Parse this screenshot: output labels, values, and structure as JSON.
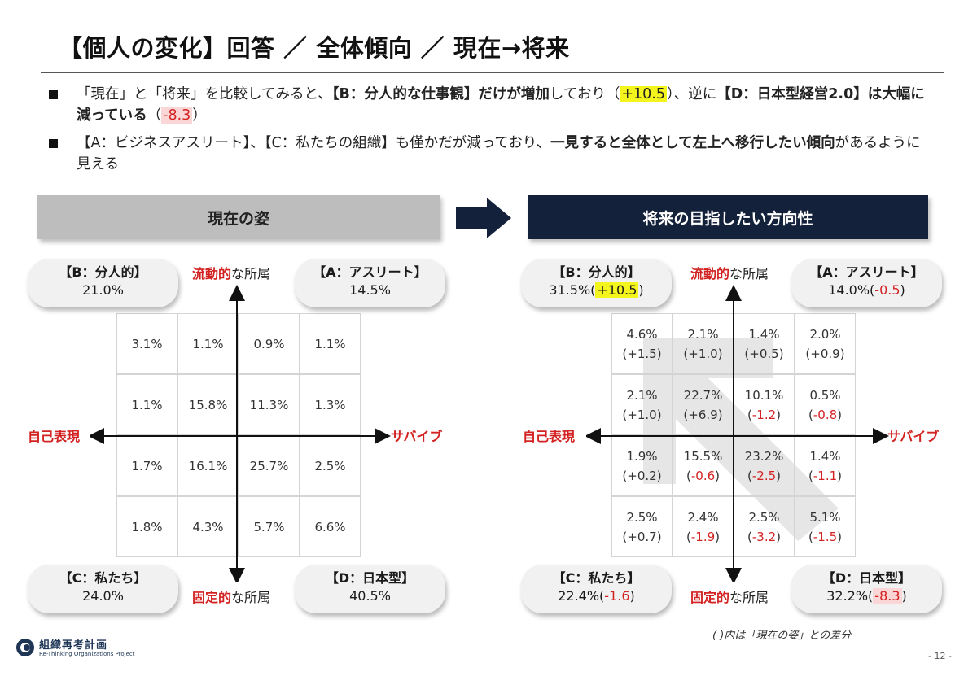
{
  "title": "【個人の変化】回答 ／ 全体傾向 ／ 現在→将来",
  "bullets": {
    "b1": {
      "p1": "「現在」と「将来」を比較してみると、",
      "p2": "【B：分人的な仕事観】だけが増加",
      "p3": "しており（",
      "p4": "+10.5",
      "p5": "）、逆に",
      "p6": "【D：日本型経営2.0】は大幅に減っている",
      "p7": "（",
      "p8": "-8.3",
      "p9": "）"
    },
    "b2": {
      "p1": "【A：ビジネスアスリート】、【C：私たちの組織】も僅かだが減っており、",
      "p2": "一見すると全体として左上へ移行したい傾向",
      "p3": "があるように見える"
    }
  },
  "left_panel": {
    "header": "現在の姿",
    "quadrants": {
      "B": {
        "title": "【B：分人的】",
        "value": "21.0%"
      },
      "A": {
        "title": "【A：アスリート】",
        "value": "14.5%"
      },
      "C": {
        "title": "【C：私たち】",
        "value": "24.0%"
      },
      "D": {
        "title": "【D：日本型】",
        "value": "40.5%"
      }
    },
    "grid": [
      [
        "3.1%",
        "1.1%",
        "0.9%",
        "1.1%"
      ],
      [
        "1.1%",
        "15.8%",
        "11.3%",
        "1.3%"
      ],
      [
        "1.7%",
        "16.1%",
        "25.7%",
        "2.5%"
      ],
      [
        "1.8%",
        "4.3%",
        "5.7%",
        "6.6%"
      ]
    ]
  },
  "right_panel": {
    "header": "将来の目指したい方向性",
    "quadrants": {
      "B": {
        "title": "【B：分人的】",
        "value": "31.5%(",
        "diff": "+10.5",
        "close": ")"
      },
      "A": {
        "title": "【A：アスリート】",
        "value": "14.0%(",
        "diff": "-0.5",
        "close": ")"
      },
      "C": {
        "title": "【C：私たち】",
        "value": "22.4%(",
        "diff": "-1.6",
        "close": ")"
      },
      "D": {
        "title": "【D：日本型】",
        "value": "32.2%(",
        "diff": "-8.3",
        "close": ")"
      }
    },
    "grid": [
      [
        {
          "v": "4.6%",
          "d": "+1.5"
        },
        {
          "v": "2.1%",
          "d": "+1.0"
        },
        {
          "v": "1.4%",
          "d": "+0.5"
        },
        {
          "v": "2.0%",
          "d": "+0.9"
        }
      ],
      [
        {
          "v": "2.1%",
          "d": "+1.0"
        },
        {
          "v": "22.7%",
          "d": "+6.9"
        },
        {
          "v": "10.1%",
          "d": "-1.2"
        },
        {
          "v": "0.5%",
          "d": "-0.8"
        }
      ],
      [
        {
          "v": "1.9%",
          "d": "+0.2"
        },
        {
          "v": "15.5%",
          "d": "-0.6"
        },
        {
          "v": "23.2%",
          "d": "-2.5"
        },
        {
          "v": "1.4%",
          "d": "-1.1"
        }
      ],
      [
        {
          "v": "2.5%",
          "d": "+0.7"
        },
        {
          "v": "2.4%",
          "d": "-1.9"
        },
        {
          "v": "2.5%",
          "d": "-3.2"
        },
        {
          "v": "5.1%",
          "d": "-1.5"
        }
      ]
    ]
  },
  "axes": {
    "top_bold": "流動的",
    "top_plain": "な所属",
    "bottom_bold": "固定的",
    "bottom_plain": "な所属",
    "left": "自己表現",
    "right": "サバイブ"
  },
  "footnote": "( )内は「現在の姿」との差分",
  "logo": {
    "name": "組織再考計画",
    "sub": "Re-Thinking Organizations Project"
  },
  "page_number": "- 12 -",
  "colors": {
    "accent_red": "#d32222",
    "navy": "#14213a",
    "highlight_yellow": "#f5f51e"
  }
}
